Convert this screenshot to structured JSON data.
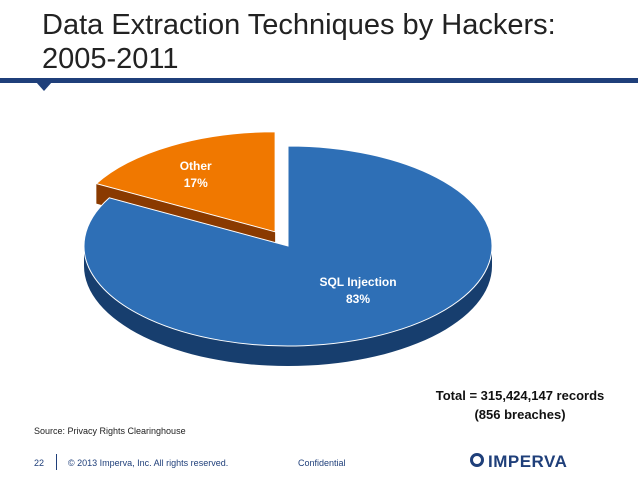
{
  "slide": {
    "title": "Data Extraction Techniques by Hackers: 2005-2011",
    "total_line1": "Total = 315,424,147 records",
    "total_line2": "(856 breaches)",
    "source": "Source:  Privacy Rights Clearinghouse",
    "page_number": "22",
    "copyright": "© 2013 Imperva, Inc. All rights reserved.",
    "confidential": "Confidential",
    "logo": "IMPERVA"
  },
  "colors": {
    "sql_injection": "#2e6fb6",
    "sql_injection_side": "#173e6e",
    "other": "#f07800",
    "other_side": "#8a3a00",
    "accent": "#1f3f7a"
  },
  "chart_data": {
    "type": "pie",
    "title": "",
    "labels": [
      "SQL Injection",
      "Other"
    ],
    "values": [
      83,
      17
    ],
    "value_labels": [
      "83%",
      "17%"
    ],
    "exploded": [
      "Other"
    ],
    "style": "3d"
  }
}
